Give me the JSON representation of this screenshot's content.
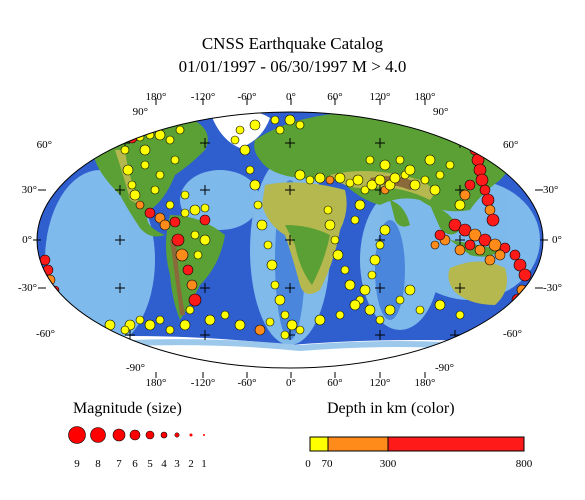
{
  "title": {
    "line1": "CNSS Earthquake Catalog",
    "line2": "01/01/1997 - 06/30/1997 M > 4.0"
  },
  "map": {
    "top_lon_labels": [
      "180°",
      "-120°",
      "-60°",
      "0°",
      "60°",
      "120°",
      "180°"
    ],
    "bottom_lon_labels": [
      "180°",
      "-120°",
      "-60°",
      "0°",
      "60°",
      "120°",
      "180°"
    ],
    "left_lat_labels": [
      "90°",
      "60°",
      "30°",
      "0°",
      "-30°",
      "-60°",
      "-90°"
    ],
    "right_lat_labels": [
      "90°",
      "60°",
      "30°",
      "0°",
      "-30°",
      "-60°",
      "-90°"
    ],
    "colors": {
      "ocean_deep": "#2f5fcf",
      "ocean_mid": "#4a86dc",
      "ocean_shelf": "#88c4ee",
      "land_low": "#5aa035",
      "land_mid": "#b4b84e",
      "land_high": "#8a6a3a",
      "ice": "#ffffff"
    }
  },
  "legend": {
    "magnitude_title": "Magnitude (size)",
    "magnitude_labels": [
      "9",
      "8",
      "7",
      "6",
      "5",
      "4",
      "3",
      "2",
      "1"
    ],
    "depth_title": "Depth in km (color)",
    "depth_labels": [
      "0",
      "70",
      "300",
      "800"
    ],
    "depth_colors": [
      "#ffff00",
      "#ff8c1a",
      "#ff1a1a"
    ]
  }
}
